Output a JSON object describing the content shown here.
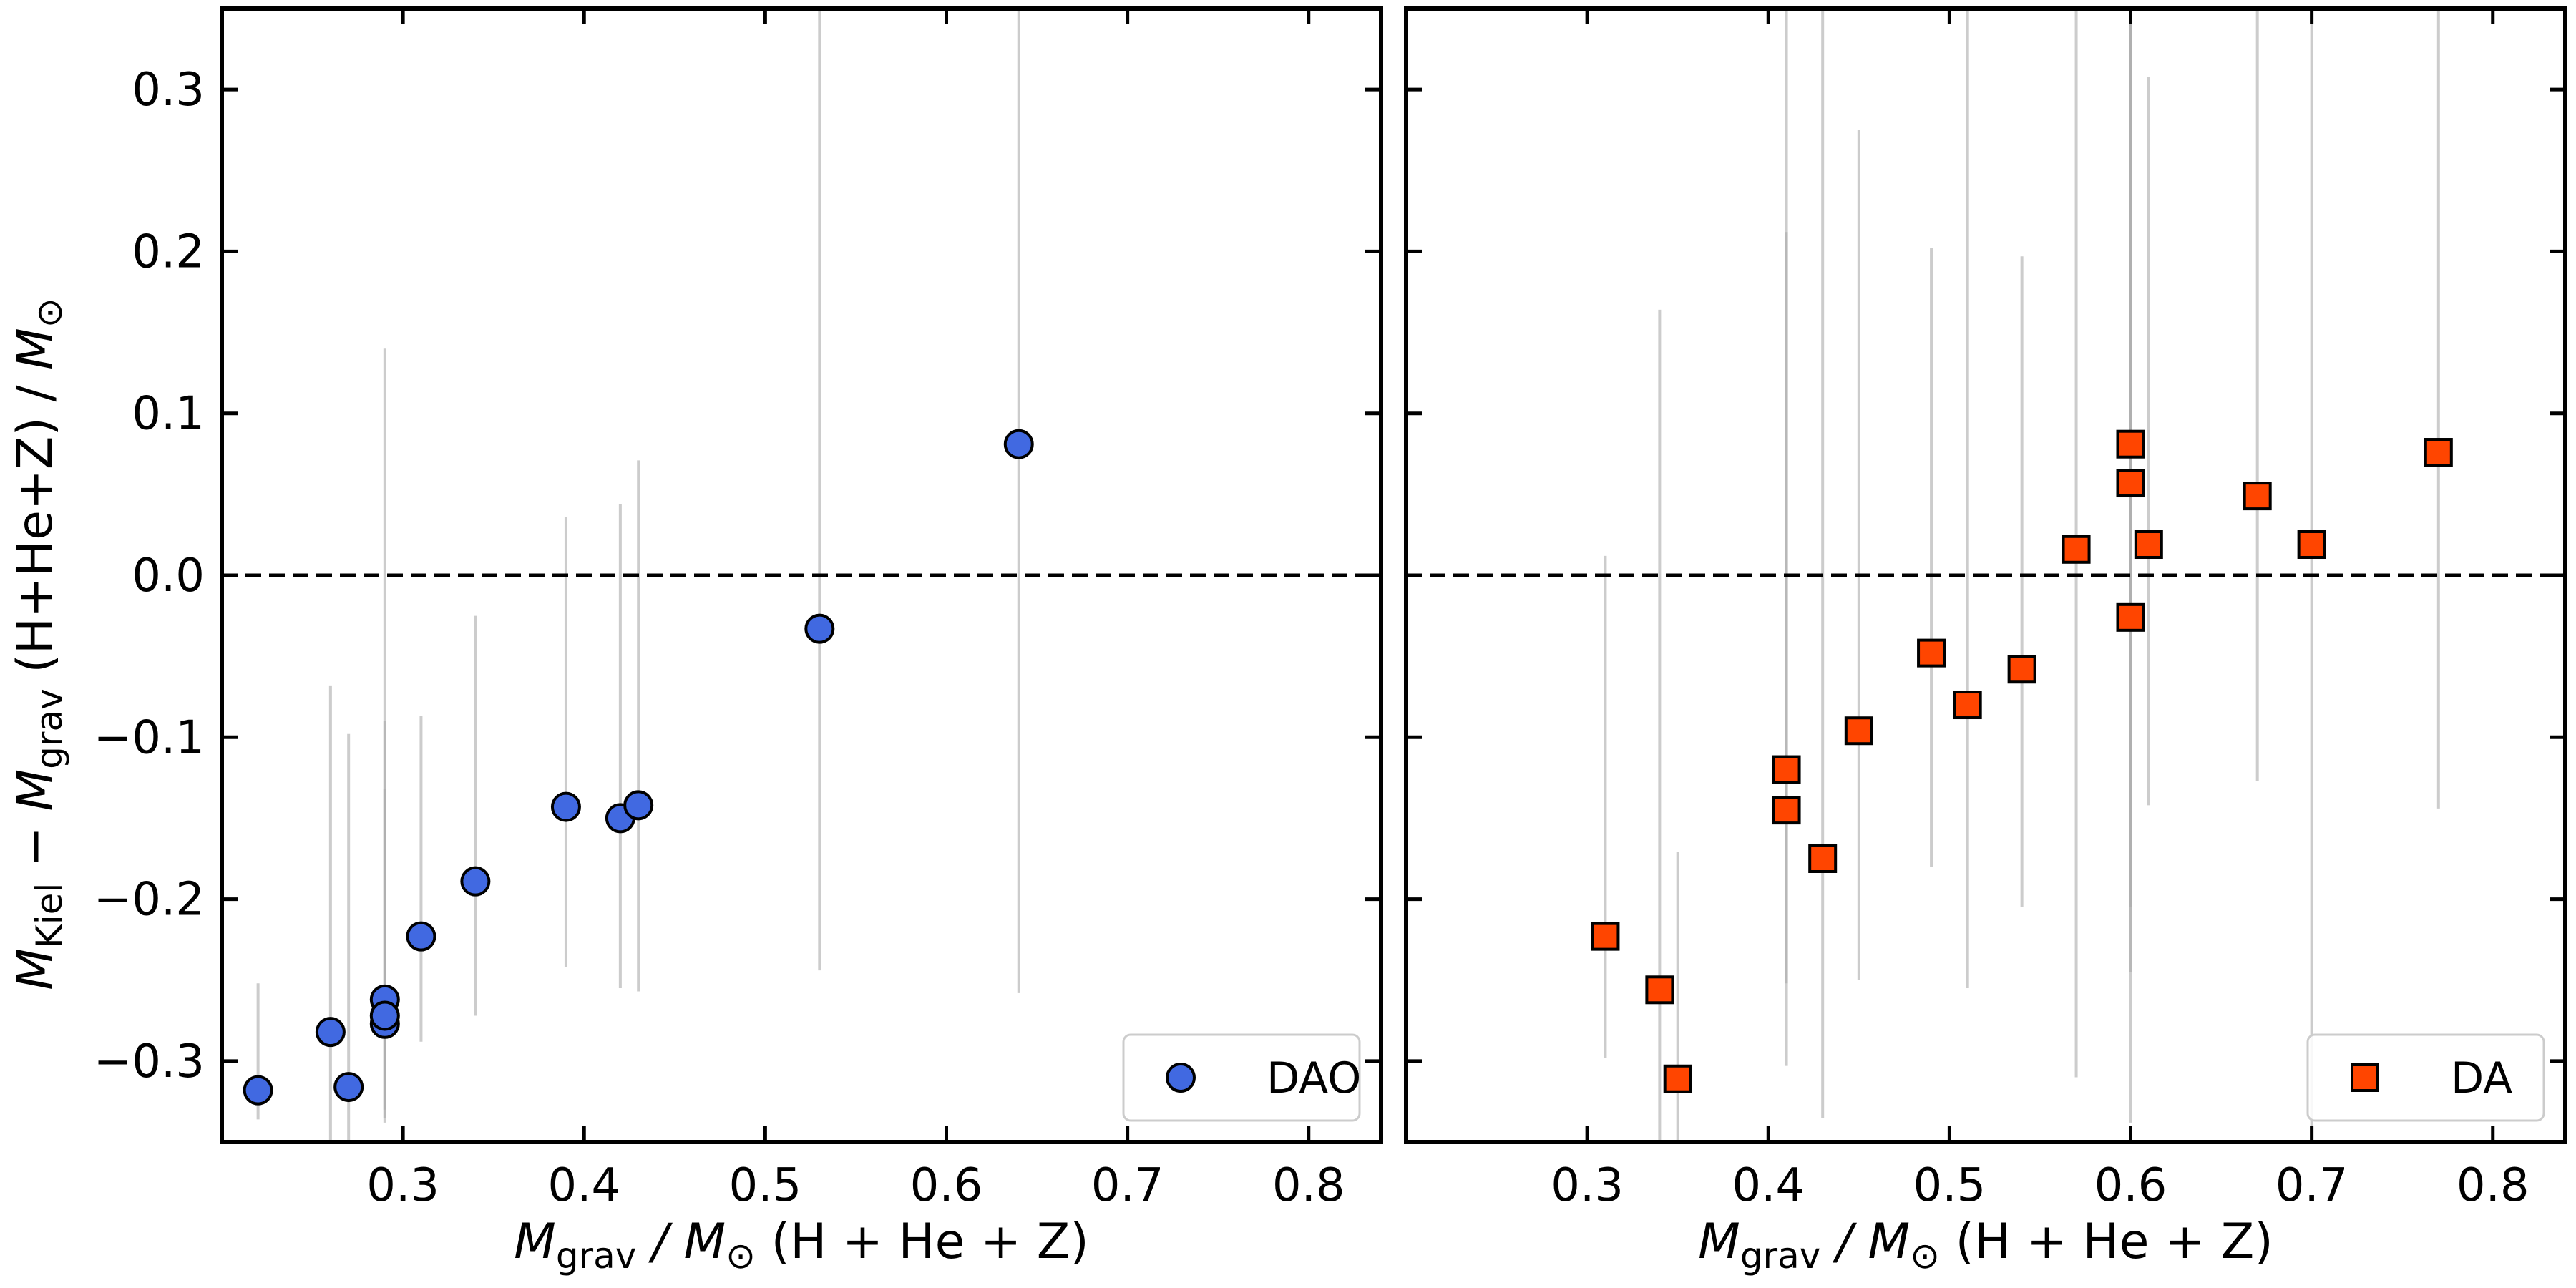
{
  "chart_data": [
    {
      "type": "scatter",
      "panel": "left",
      "xlim": [
        0.2,
        0.84
      ],
      "ylim": [
        -0.35,
        0.35
      ],
      "x_ticks": [
        0.3,
        0.4,
        0.5,
        0.6,
        0.7,
        0.8
      ],
      "x_tick_labels": [
        "0.3",
        "0.4",
        "0.5",
        "0.6",
        "0.7",
        "0.8"
      ],
      "y_ticks": [
        0.3,
        0.2,
        0.1,
        0.0,
        -0.1,
        -0.2,
        -0.3
      ],
      "y_tick_labels": [
        "0.3",
        "0.2",
        "0.1",
        "0.0",
        "−0.1",
        "−0.2",
        "−0.3"
      ],
      "xlabel": {
        "sym": "M",
        "sub": "grav",
        "rest": " / M",
        "sun": "⊙",
        "tail": " (H + He + Z)"
      },
      "ylabel": {
        "m1": "M",
        "sub1": "Kiel",
        "minus": " − ",
        "m2": "M",
        "sub2": "grav",
        "mid": " (H+He+Z) / ",
        "m3": "M",
        "sun": "⊙"
      },
      "reference_line": 0,
      "legend": {
        "label": "DAO",
        "position": "lower-right"
      },
      "marker": "circle",
      "color": "#4169E1",
      "points": [
        {
          "x": 0.22,
          "y": -0.318,
          "lo": -0.336,
          "hi": -0.252
        },
        {
          "x": 0.26,
          "y": -0.282,
          "lo": -0.35,
          "hi": -0.068
        },
        {
          "x": 0.27,
          "y": -0.316,
          "lo": -0.35,
          "hi": -0.098
        },
        {
          "x": 0.29,
          "y": -0.277,
          "lo": -0.338,
          "hi": 0.14
        },
        {
          "x": 0.29,
          "y": -0.262,
          "lo": -0.335,
          "hi": -0.132
        },
        {
          "x": 0.29,
          "y": -0.272,
          "lo": -0.33,
          "hi": -0.09
        },
        {
          "x": 0.31,
          "y": -0.223,
          "lo": -0.288,
          "hi": -0.087
        },
        {
          "x": 0.34,
          "y": -0.189,
          "lo": -0.272,
          "hi": -0.025
        },
        {
          "x": 0.39,
          "y": -0.143,
          "lo": -0.242,
          "hi": 0.036
        },
        {
          "x": 0.42,
          "y": -0.15,
          "lo": -0.255,
          "hi": 0.044
        },
        {
          "x": 0.43,
          "y": -0.142,
          "lo": -0.257,
          "hi": 0.071
        },
        {
          "x": 0.53,
          "y": -0.033,
          "lo": -0.244,
          "hi": 0.35
        },
        {
          "x": 0.64,
          "y": 0.081,
          "lo": -0.258,
          "hi": 0.35
        }
      ]
    },
    {
      "type": "scatter",
      "panel": "right",
      "xlim": [
        0.2,
        0.84
      ],
      "ylim": [
        -0.35,
        0.35
      ],
      "x_ticks": [
        0.3,
        0.4,
        0.5,
        0.6,
        0.7,
        0.8
      ],
      "x_tick_labels": [
        "0.3",
        "0.4",
        "0.5",
        "0.6",
        "0.7",
        "0.8"
      ],
      "xlabel": {
        "sym": "M",
        "sub": "grav",
        "rest": " / M",
        "sun": "⊙",
        "tail": " (H + He + Z)"
      },
      "reference_line": 0,
      "legend": {
        "label": "DA",
        "position": "lower-right"
      },
      "marker": "square",
      "color": "#FF4500",
      "points": [
        {
          "x": 0.31,
          "y": -0.223,
          "lo": -0.298,
          "hi": 0.012
        },
        {
          "x": 0.34,
          "y": -0.256,
          "lo": -0.35,
          "hi": 0.164
        },
        {
          "x": 0.35,
          "y": -0.311,
          "lo": -0.35,
          "hi": -0.171
        },
        {
          "x": 0.41,
          "y": -0.12,
          "lo": -0.252,
          "hi": 0.35
        },
        {
          "x": 0.41,
          "y": -0.145,
          "lo": -0.303,
          "hi": 0.212
        },
        {
          "x": 0.43,
          "y": -0.175,
          "lo": -0.335,
          "hi": 0.35
        },
        {
          "x": 0.45,
          "y": -0.096,
          "lo": -0.25,
          "hi": 0.275
        },
        {
          "x": 0.49,
          "y": -0.048,
          "lo": -0.18,
          "hi": 0.202
        },
        {
          "x": 0.51,
          "y": -0.08,
          "lo": -0.255,
          "hi": 0.35
        },
        {
          "x": 0.54,
          "y": -0.058,
          "lo": -0.205,
          "hi": 0.197
        },
        {
          "x": 0.57,
          "y": 0.016,
          "lo": -0.31,
          "hi": 0.35
        },
        {
          "x": 0.6,
          "y": 0.081,
          "lo": -0.245,
          "hi": 0.35
        },
        {
          "x": 0.6,
          "y": 0.057,
          "lo": -0.205,
          "hi": 0.35
        },
        {
          "x": 0.6,
          "y": -0.026,
          "lo": -0.338,
          "hi": 0.35
        },
        {
          "x": 0.61,
          "y": 0.019,
          "lo": -0.142,
          "hi": 0.308
        },
        {
          "x": 0.67,
          "y": 0.049,
          "lo": -0.127,
          "hi": 0.35
        },
        {
          "x": 0.7,
          "y": 0.019,
          "lo": -0.35,
          "hi": 0.35
        },
        {
          "x": 0.77,
          "y": 0.076,
          "lo": -0.144,
          "hi": 0.35
        }
      ]
    }
  ]
}
